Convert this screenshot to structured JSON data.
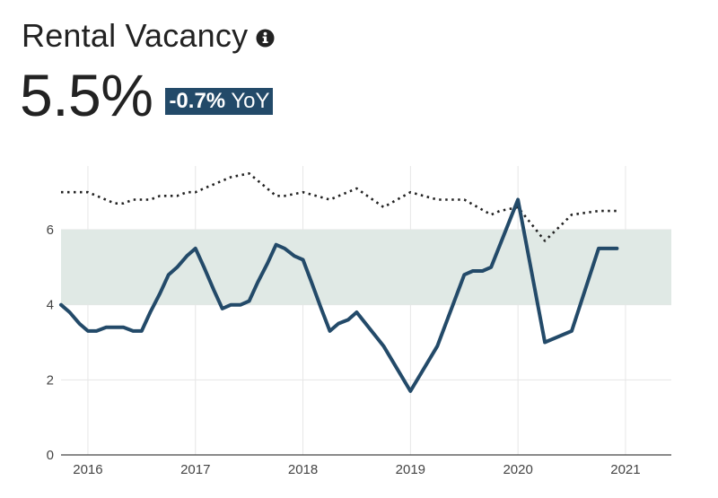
{
  "header": {
    "title": "Rental Vacancy",
    "info_icon": "info-circle-icon",
    "value": "5.5%",
    "yoy_change": "-0.7%",
    "yoy_suffix": "YoY",
    "badge_color": "#234a69"
  },
  "chart_data": {
    "type": "line",
    "title": "",
    "xlabel": "",
    "ylabel": "",
    "xlim": [
      2015.75,
      2021.42
    ],
    "ylim": [
      0,
      7.5
    ],
    "x_ticks": [
      2016,
      2017,
      2018,
      2019,
      2020,
      2021
    ],
    "x_tick_labels": [
      "2016",
      "2017",
      "2018",
      "2019",
      "2020",
      "2021"
    ],
    "y_ticks": [
      0,
      2,
      4,
      6
    ],
    "y_tick_labels": [
      "0",
      "2",
      "4",
      "6"
    ],
    "grid": true,
    "band": {
      "from": 4,
      "to": 6,
      "color": "#e0e9e5"
    },
    "series": [
      {
        "style": "solid",
        "color": "#234a69",
        "points": [
          [
            2015.75,
            4.0
          ],
          [
            2015.83,
            3.8
          ],
          [
            2015.92,
            3.5
          ],
          [
            2016.0,
            3.3
          ],
          [
            2016.08,
            3.3
          ],
          [
            2016.17,
            3.4
          ],
          [
            2016.25,
            3.4
          ],
          [
            2016.33,
            3.4
          ],
          [
            2016.42,
            3.3
          ],
          [
            2016.5,
            3.3
          ],
          [
            2016.58,
            3.8
          ],
          [
            2016.67,
            4.3
          ],
          [
            2016.75,
            4.8
          ],
          [
            2016.83,
            5.0
          ],
          [
            2016.92,
            5.3
          ],
          [
            2017.0,
            5.5
          ],
          [
            2017.08,
            5.0
          ],
          [
            2017.17,
            4.4
          ],
          [
            2017.25,
            3.9
          ],
          [
            2017.33,
            4.0
          ],
          [
            2017.42,
            4.0
          ],
          [
            2017.5,
            4.1
          ],
          [
            2017.58,
            4.6
          ],
          [
            2017.67,
            5.1
          ],
          [
            2017.75,
            5.6
          ],
          [
            2017.83,
            5.5
          ],
          [
            2017.92,
            5.3
          ],
          [
            2018.0,
            5.2
          ],
          [
            2018.08,
            4.6
          ],
          [
            2018.17,
            3.9
          ],
          [
            2018.25,
            3.3
          ],
          [
            2018.33,
            3.5
          ],
          [
            2018.42,
            3.6
          ],
          [
            2018.5,
            3.8
          ],
          [
            2018.75,
            2.9
          ],
          [
            2019.0,
            1.7
          ],
          [
            2019.25,
            2.9
          ],
          [
            2019.5,
            4.8
          ],
          [
            2019.58,
            4.9
          ],
          [
            2019.67,
            4.9
          ],
          [
            2019.75,
            5.0
          ],
          [
            2020.0,
            6.8
          ],
          [
            2020.25,
            3.0
          ],
          [
            2020.5,
            3.3
          ],
          [
            2020.75,
            5.5
          ],
          [
            2020.92,
            5.5
          ]
        ]
      },
      {
        "style": "dotted",
        "color": "#222222",
        "points": [
          [
            2015.75,
            7.0
          ],
          [
            2016.0,
            7.0
          ],
          [
            2016.25,
            6.7
          ],
          [
            2016.33,
            6.7
          ],
          [
            2016.42,
            6.8
          ],
          [
            2016.58,
            6.8
          ],
          [
            2016.67,
            6.9
          ],
          [
            2016.83,
            6.9
          ],
          [
            2016.92,
            7.0
          ],
          [
            2017.0,
            7.0
          ],
          [
            2017.08,
            7.1
          ],
          [
            2017.33,
            7.4
          ],
          [
            2017.5,
            7.5
          ],
          [
            2017.75,
            6.9
          ],
          [
            2017.83,
            6.9
          ],
          [
            2018.0,
            7.0
          ],
          [
            2018.25,
            6.8
          ],
          [
            2018.5,
            7.1
          ],
          [
            2018.75,
            6.6
          ],
          [
            2019.0,
            7.0
          ],
          [
            2019.25,
            6.8
          ],
          [
            2019.5,
            6.8
          ],
          [
            2019.75,
            6.4
          ],
          [
            2019.83,
            6.5
          ],
          [
            2020.0,
            6.6
          ],
          [
            2020.25,
            5.7
          ],
          [
            2020.5,
            6.4
          ],
          [
            2020.75,
            6.5
          ],
          [
            2020.92,
            6.5
          ]
        ]
      }
    ]
  }
}
